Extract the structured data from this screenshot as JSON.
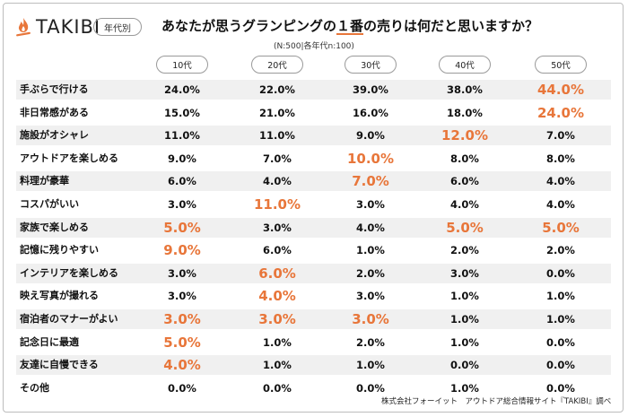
{
  "logo": {
    "text": "TAKIBI",
    "icon": "campfire-icon",
    "icon_color": "#e8763a"
  },
  "tag": "年代別",
  "title": {
    "before": "あなたが思うグランピングの",
    "highlight": "１番",
    "after": "の売りは何だと思いますか？"
  },
  "subtitle": "(N:500|各年代n:100)",
  "footer": "株式会社フォーイット　アウトドア総合情報サイト『TAKIBI』調べ",
  "colors": {
    "highlight": "#e8763a",
    "row_shade": "#f0f0f0"
  },
  "chart_data": {
    "type": "table",
    "columns": [
      "10代",
      "20代",
      "30代",
      "40代",
      "50代"
    ],
    "rows": [
      {
        "label": "手ぶらで行ける",
        "values": [
          "24.0%",
          "22.0%",
          "39.0%",
          "38.0%",
          "44.0%"
        ],
        "highlight": [
          4
        ]
      },
      {
        "label": "非日常感がある",
        "values": [
          "15.0%",
          "21.0%",
          "16.0%",
          "18.0%",
          "24.0%"
        ],
        "highlight": [
          4
        ]
      },
      {
        "label": "施設がオシャレ",
        "values": [
          "11.0%",
          "11.0%",
          "9.0%",
          "12.0%",
          "7.0%"
        ],
        "highlight": [
          3
        ]
      },
      {
        "label": "アウトドアを楽しめる",
        "values": [
          "9.0%",
          "7.0%",
          "10.0%",
          "8.0%",
          "8.0%"
        ],
        "highlight": [
          2
        ]
      },
      {
        "label": "料理が豪華",
        "values": [
          "6.0%",
          "4.0%",
          "7.0%",
          "6.0%",
          "4.0%"
        ],
        "highlight": [
          2
        ]
      },
      {
        "label": "コスパがいい",
        "values": [
          "3.0%",
          "11.0%",
          "3.0%",
          "4.0%",
          "4.0%"
        ],
        "highlight": [
          1
        ]
      },
      {
        "label": "家族で楽しめる",
        "values": [
          "5.0%",
          "3.0%",
          "4.0%",
          "5.0%",
          "5.0%"
        ],
        "highlight": [
          0,
          3,
          4
        ]
      },
      {
        "label": "記憶に残りやすい",
        "values": [
          "9.0%",
          "6.0%",
          "1.0%",
          "2.0%",
          "2.0%"
        ],
        "highlight": [
          0
        ]
      },
      {
        "label": "インテリアを楽しめる",
        "values": [
          "3.0%",
          "6.0%",
          "2.0%",
          "3.0%",
          "0.0%"
        ],
        "highlight": [
          1
        ]
      },
      {
        "label": "映え写真が撮れる",
        "values": [
          "3.0%",
          "4.0%",
          "3.0%",
          "1.0%",
          "1.0%"
        ],
        "highlight": [
          1
        ]
      },
      {
        "label": "宿泊者のマナーがよい",
        "values": [
          "3.0%",
          "3.0%",
          "3.0%",
          "1.0%",
          "1.0%"
        ],
        "highlight": [
          0,
          1,
          2
        ]
      },
      {
        "label": "記念日に最適",
        "values": [
          "5.0%",
          "1.0%",
          "2.0%",
          "1.0%",
          "0.0%"
        ],
        "highlight": [
          0
        ]
      },
      {
        "label": "友達に自慢できる",
        "values": [
          "4.0%",
          "1.0%",
          "1.0%",
          "0.0%",
          "0.0%"
        ],
        "highlight": [
          0
        ]
      },
      {
        "label": "その他",
        "values": [
          "0.0%",
          "0.0%",
          "0.0%",
          "1.0%",
          "0.0%"
        ],
        "highlight": []
      }
    ]
  }
}
